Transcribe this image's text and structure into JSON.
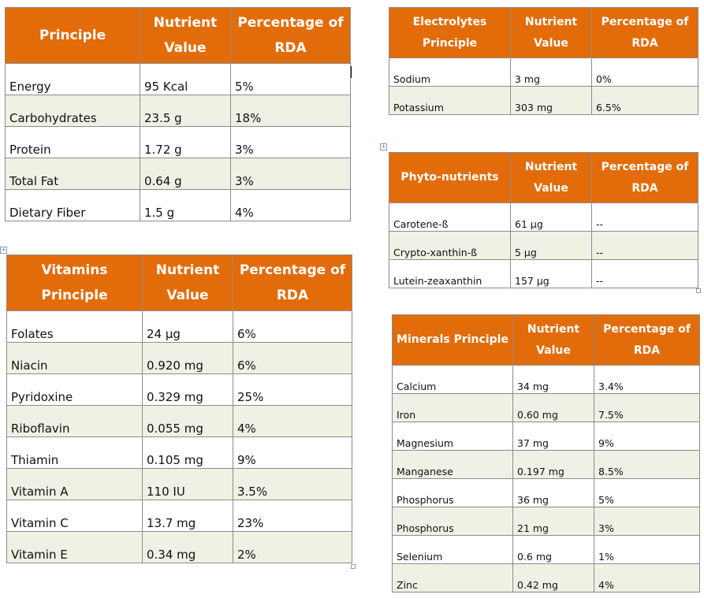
{
  "tables": {
    "principle": {
      "headers": [
        "Principle",
        "Nutrient Value",
        "Percentage of RDA"
      ],
      "rows": [
        [
          "Energy",
          "95 Kcal",
          "5%"
        ],
        [
          "Carbohydrates",
          "23.5 g",
          "18%"
        ],
        [
          "Protein",
          "1.72 g",
          "3%"
        ],
        [
          "Total Fat",
          "0.64 g",
          "3%"
        ],
        [
          "Dietary Fiber",
          "1.5 g",
          "4%"
        ]
      ]
    },
    "vitamins": {
      "headers": [
        "Vitamins Principle",
        "Nutrient Value",
        "Percentage of RDA"
      ],
      "rows": [
        [
          "Folates",
          "24 µg",
          "6%"
        ],
        [
          "Niacin",
          "0.920 mg",
          "6%"
        ],
        [
          "Pyridoxine",
          "0.329 mg",
          "25%"
        ],
        [
          "Riboflavin",
          "0.055 mg",
          "4%"
        ],
        [
          "Thiamin",
          "0.105 mg",
          "9%"
        ],
        [
          "Vitamin A",
          "110 IU",
          "3.5%"
        ],
        [
          "Vitamin C",
          "13.7 mg",
          "23%"
        ],
        [
          "Vitamin E",
          "0.34 mg",
          "2%"
        ]
      ]
    },
    "electrolytes": {
      "headers": [
        "Electrolytes Principle",
        "Nutrient Value",
        "Percentage of RDA"
      ],
      "rows": [
        [
          "Sodium",
          "3 mg",
          "0%"
        ],
        [
          "Potassium",
          "303 mg",
          "6.5%"
        ]
      ]
    },
    "phyto": {
      "headers": [
        "Phyto-nutrients",
        "Nutrient Value",
        "Percentage of RDA"
      ],
      "rows": [
        [
          "Carotene-ß",
          "61 µg",
          "--"
        ],
        [
          "Crypto-xanthin-ß",
          "5 µg",
          "--"
        ],
        [
          "Lutein-zeaxanthin",
          "157 µg",
          "--"
        ]
      ]
    },
    "minerals": {
      "headers": [
        "Minerals Principle",
        "Nutrient Value",
        "Percentage of RDA"
      ],
      "rows": [
        [
          "Calcium",
          "34 mg",
          "3.4%"
        ],
        [
          "Iron",
          "0.60 mg",
          "7.5%"
        ],
        [
          "Magnesium",
          "37 mg",
          "9%"
        ],
        [
          "Manganese",
          "0.197 mg",
          "8.5%"
        ],
        [
          "Phosphorus",
          "36 mg",
          "5%"
        ],
        [
          "Phosphorus",
          "21 mg",
          "3%"
        ],
        [
          "Selenium",
          "0.6 mg",
          "1%"
        ],
        [
          "Zinc",
          "0.42 mg",
          "4%"
        ]
      ]
    }
  },
  "colors": {
    "header_bg": "#e36c0a",
    "header_text": "#ffffff",
    "band_row": "#eef2e4"
  }
}
